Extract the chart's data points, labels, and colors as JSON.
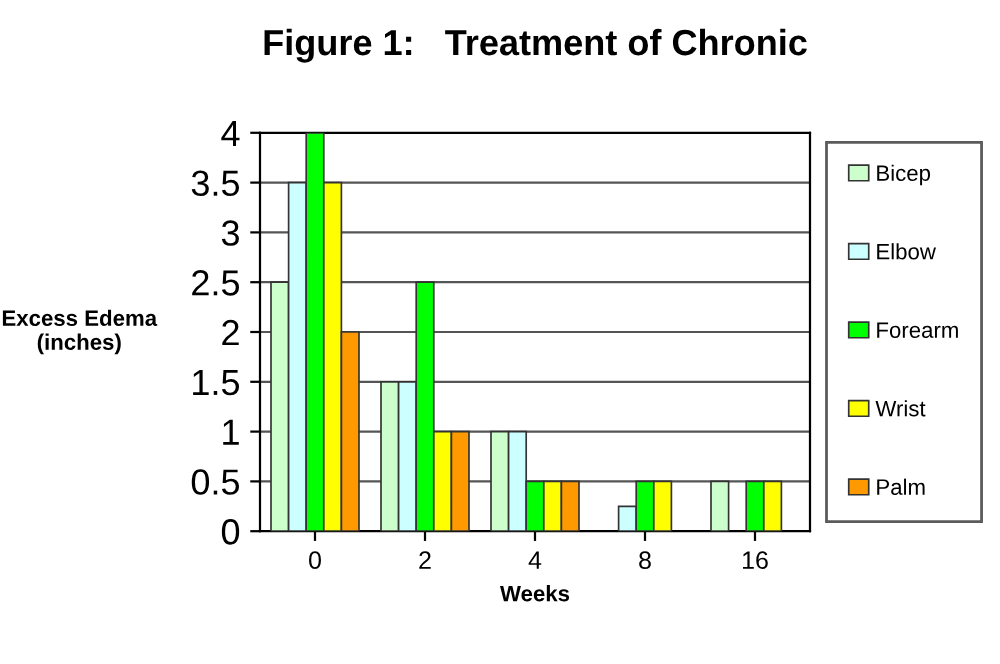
{
  "chart_data": {
    "type": "bar",
    "title": "Figure 1:   Treatment of Chronic",
    "xlabel": "Weeks",
    "ylabel": "Excess Edema\n(inches)",
    "categories": [
      "0",
      "2",
      "4",
      "8",
      "16"
    ],
    "series": [
      {
        "name": "Bicep",
        "color": "#ccffcc",
        "values": [
          2.5,
          1.5,
          1,
          0,
          0.5
        ]
      },
      {
        "name": "Elbow",
        "color": "#ccffff",
        "values": [
          3.5,
          1.5,
          1,
          0.25,
          0
        ]
      },
      {
        "name": "Forearm",
        "color": "#00ff00",
        "values": [
          4,
          2.5,
          0.5,
          0.5,
          0.5
        ]
      },
      {
        "name": "Wrist",
        "color": "#ffff00",
        "values": [
          3.5,
          1,
          0.5,
          0.5,
          0.5
        ]
      },
      {
        "name": "Palm",
        "color": "#ff9900",
        "values": [
          2,
          1,
          0.5,
          0,
          0
        ]
      }
    ],
    "ylim": [
      0,
      4
    ],
    "yticks": [
      0,
      0.5,
      1,
      1.5,
      2,
      2.5,
      3,
      3.5,
      4
    ],
    "grid": "y",
    "legend": "right"
  }
}
